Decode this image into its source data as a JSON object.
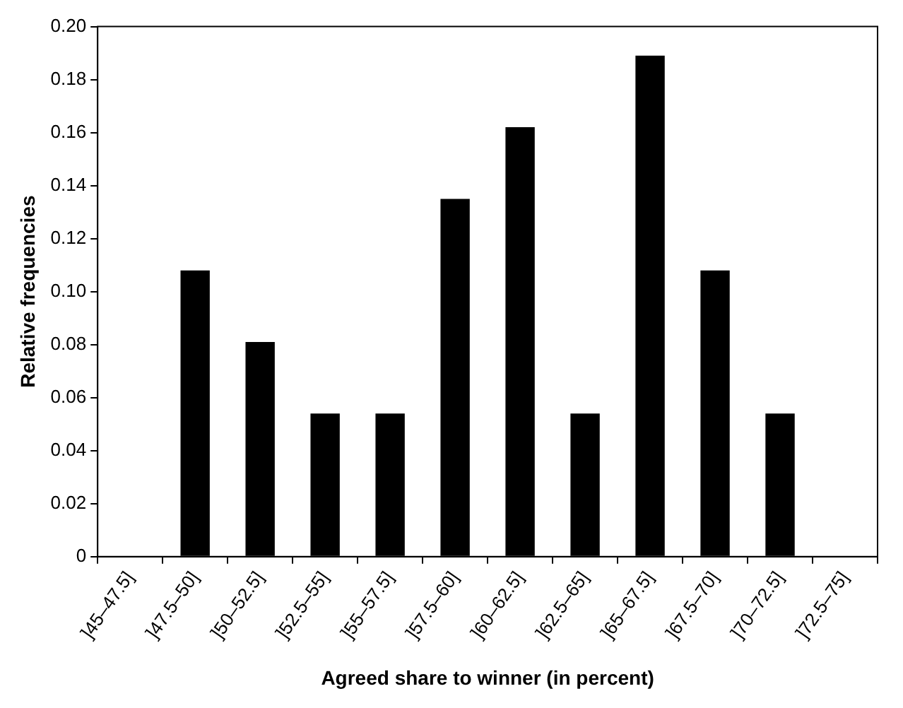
{
  "chart_data": {
    "type": "bar",
    "xlabel": "Agreed share to winner (in percent)",
    "ylabel": "Relative frequencies",
    "categories": [
      "]45–47.5]",
      "]47.5–50]",
      "]50–52.5]",
      "]52.5–55]",
      "]55–57.5]",
      "]57.5–60]",
      "]60–62.5]",
      "]62.5–65]",
      "]65–67.5]",
      "]67.5–70]",
      "]70–72.5]",
      "]72.5–75]"
    ],
    "values": [
      0,
      0.108,
      0.081,
      0.054,
      0.054,
      0.135,
      0.162,
      0.054,
      0.189,
      0.108,
      0.054,
      0
    ],
    "color": "#000000",
    "ylim": [
      0,
      0.2
    ],
    "yticks": [
      0,
      {
        "value": 0.02,
        "label": "0.02"
      },
      {
        "value": 0.04,
        "label": "0.04"
      },
      {
        "value": 0.06,
        "label": "0.06"
      },
      {
        "value": 0.08,
        "label": "0.08"
      },
      {
        "value": 0.1,
        "label": "0.10"
      },
      {
        "value": 0.12,
        "label": "0.12"
      },
      {
        "value": 0.14,
        "label": "0.14"
      },
      {
        "value": 0.16,
        "label": "0.16"
      },
      {
        "value": 0.18,
        "label": "0.18"
      },
      {
        "value": 0.2,
        "label": "0.20"
      }
    ],
    "grid": false,
    "legend": false
  }
}
